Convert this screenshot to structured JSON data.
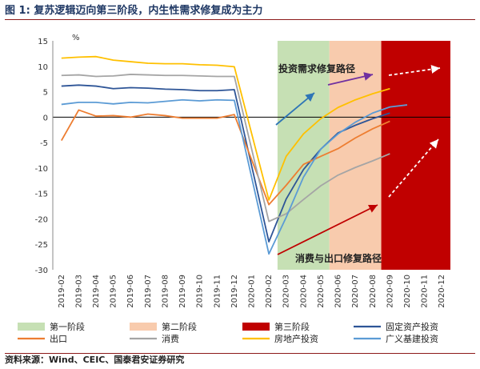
{
  "figure_label": "图 1:",
  "title": "复苏逻辑迈向第三阶段，内生性需求修复成为主力",
  "source": "资料来源：Wind、CEIC、国泰君安证券研究",
  "chart_data": {
    "type": "line",
    "unit_label": "%",
    "ylim": [
      -30,
      15
    ],
    "yticks": [
      15,
      10,
      5,
      0,
      -5,
      -10,
      -15,
      -20,
      -25,
      -30
    ],
    "categories": [
      "2019-02",
      "2019-03",
      "2019-04",
      "2019-05",
      "2019-06",
      "2019-07",
      "2019-08",
      "2019-09",
      "2019-10",
      "2019-11",
      "2019-12",
      "2020-01",
      "2020-02",
      "2020-03",
      "2020-04",
      "2020-05",
      "2020-06",
      "2020-07",
      "2020-08",
      "2020-09",
      "2020-10",
      "2020-11",
      "2020-12"
    ],
    "stages": [
      {
        "name": "第一阶段",
        "from": "2020-03",
        "to": "2020-05",
        "color": "#c6e0b4"
      },
      {
        "name": "第二阶段",
        "from": "2020-06",
        "to": "2020-08",
        "color": "#f8cbad"
      },
      {
        "name": "第三阶段",
        "from": "2020-09",
        "to": "2020-12",
        "color": "#c00000"
      }
    ],
    "series": [
      {
        "name": "固定资产投资",
        "color": "#2e5597",
        "values": [
          6.1,
          6.3,
          6.1,
          5.6,
          5.8,
          5.7,
          5.5,
          5.4,
          5.2,
          5.2,
          5.4,
          null,
          -24.5,
          -16.1,
          -10.3,
          -6.3,
          -3.1,
          -1.6,
          -0.3,
          0.8,
          null,
          null,
          null
        ]
      },
      {
        "name": "出口",
        "color": "#ed7d31",
        "values": [
          -4.6,
          1.4,
          0.2,
          0.3,
          0.0,
          0.6,
          0.3,
          -0.2,
          -0.2,
          -0.2,
          0.5,
          null,
          -17.2,
          -13.4,
          -9.3,
          -7.7,
          -6.2,
          -4.1,
          -2.3,
          -0.8,
          null,
          null,
          null
        ]
      },
      {
        "name": "消费",
        "color": "#a5a5a5",
        "values": [
          8.2,
          8.3,
          8.0,
          8.1,
          8.4,
          8.3,
          8.2,
          8.2,
          8.1,
          8.0,
          8.0,
          null,
          -20.5,
          -19.0,
          -16.2,
          -13.5,
          -11.4,
          -9.9,
          -8.6,
          -7.2,
          null,
          null,
          null
        ]
      },
      {
        "name": "房地产投资",
        "color": "#ffc000",
        "values": [
          11.6,
          11.8,
          11.9,
          11.2,
          10.9,
          10.6,
          10.5,
          10.5,
          10.3,
          10.2,
          9.9,
          null,
          -16.3,
          -7.7,
          -3.3,
          -0.3,
          1.9,
          3.4,
          4.6,
          5.6,
          null,
          null,
          null
        ]
      },
      {
        "name": "广义基建投资",
        "color": "#5b9bd5",
        "values": [
          2.5,
          2.9,
          2.9,
          2.6,
          2.9,
          2.8,
          3.1,
          3.4,
          3.2,
          3.4,
          3.3,
          null,
          -26.9,
          -19.7,
          -11.8,
          -6.3,
          -3.3,
          -1.0,
          0.8,
          2.0,
          2.4,
          null,
          null
        ]
      }
    ],
    "annotations": [
      {
        "text": "投资需求修复路径"
      },
      {
        "text": "消费与出口修复路径"
      }
    ]
  }
}
